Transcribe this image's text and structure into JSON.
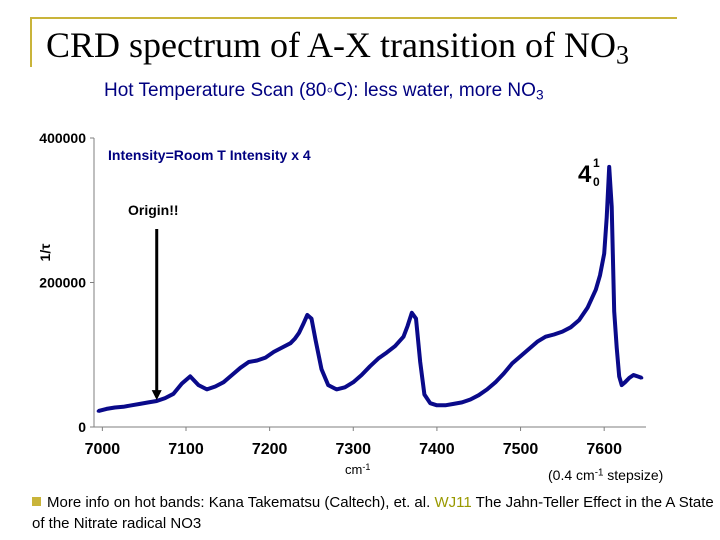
{
  "slide": {
    "title_main": "CRD spectrum of A-X transition of NO",
    "title_sub": "3",
    "subtitle_main": "Hot Temperature Scan (80◦C):  less water, more NO",
    "subtitle_sub": "3",
    "stepsize_open": "(0.4 cm",
    "stepsize_sup": "-1",
    "stepsize_close": " stepsize)",
    "x_unit_base": "cm",
    "x_unit_sup": "-1",
    "footnote_text": "More info on hot bands:  Kana Takematsu (Caltech), et. al.  ",
    "footnote_link": "WJ11",
    "footnote_rest": " The Jahn-Teller Effect in the A State of the Nitrate radical NO3"
  },
  "chart_data": {
    "type": "line",
    "title": "",
    "xlabel": "",
    "ylabel": "1/τ",
    "xlim": [
      6990,
      7650
    ],
    "ylim": [
      0,
      400000
    ],
    "xticks": [
      7000,
      7100,
      7200,
      7300,
      7400,
      7500,
      7600
    ],
    "yticks": [
      0,
      200000,
      400000
    ],
    "ytick_labels": [
      "0",
      "200000",
      "400000"
    ],
    "grid": false,
    "series": [
      {
        "color": "#0a0a8a",
        "x": [
          6995,
          7005,
          7015,
          7025,
          7035,
          7045,
          7055,
          7065,
          7075,
          7085,
          7095,
          7105,
          7115,
          7125,
          7135,
          7145,
          7155,
          7165,
          7175,
          7185,
          7195,
          7205,
          7215,
          7225,
          7230,
          7235,
          7240,
          7245,
          7250,
          7255,
          7262,
          7270,
          7280,
          7290,
          7300,
          7310,
          7320,
          7330,
          7340,
          7350,
          7360,
          7365,
          7370,
          7375,
          7380,
          7385,
          7392,
          7400,
          7410,
          7420,
          7430,
          7440,
          7450,
          7460,
          7470,
          7480,
          7490,
          7500,
          7510,
          7520,
          7530,
          7540,
          7550,
          7560,
          7570,
          7580,
          7590,
          7595,
          7600,
          7603,
          7606,
          7609,
          7612,
          7615,
          7618,
          7621,
          7625,
          7630,
          7635,
          7640,
          7645
        ],
        "values": [
          22000,
          25000,
          27000,
          28000,
          30000,
          32000,
          34000,
          36000,
          40000,
          46000,
          60000,
          70000,
          58000,
          52000,
          56000,
          62000,
          72000,
          82000,
          90000,
          92000,
          96000,
          104000,
          110000,
          116000,
          122000,
          130000,
          142000,
          155000,
          150000,
          120000,
          80000,
          58000,
          52000,
          55000,
          62000,
          72000,
          84000,
          95000,
          103000,
          112000,
          125000,
          140000,
          158000,
          150000,
          90000,
          45000,
          33000,
          30000,
          30000,
          32000,
          34000,
          38000,
          44000,
          52000,
          62000,
          74000,
          88000,
          98000,
          108000,
          118000,
          125000,
          128000,
          132000,
          138000,
          148000,
          165000,
          190000,
          210000,
          240000,
          290000,
          360000,
          305000,
          160000,
          110000,
          70000,
          58000,
          62000,
          68000,
          72000,
          70000,
          68000
        ]
      }
    ],
    "annotations": [
      {
        "text": "Intensity=Room T Intensity x 4",
        "color": "#000080"
      },
      {
        "text": "Origin!!",
        "color": "#000000",
        "arrow_x": 7065,
        "arrow_y": 40000
      },
      {
        "label_main": "4",
        "label_sup": "1",
        "label_sub": "0"
      }
    ]
  }
}
